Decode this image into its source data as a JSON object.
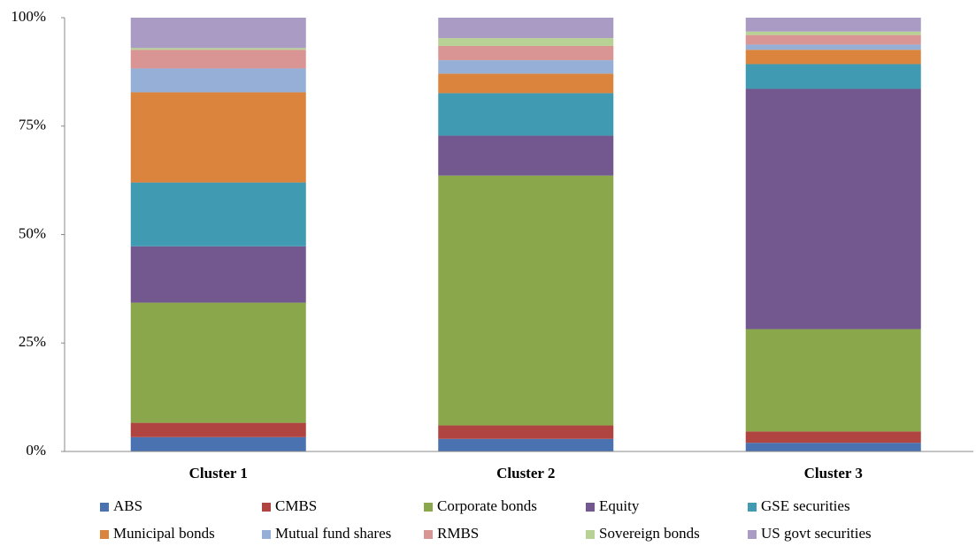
{
  "chart_data": {
    "type": "stacked_bar",
    "categories": [
      "Cluster 1",
      "Cluster 2",
      "Cluster 3"
    ],
    "series": [
      {
        "name": "ABS",
        "color": "#4a72b0",
        "values": [
          3.3,
          2.9,
          2.0
        ]
      },
      {
        "name": "CMBS",
        "color": "#b04440",
        "values": [
          3.3,
          3.1,
          2.6
        ]
      },
      {
        "name": "Corporate bonds",
        "color": "#8aa74c",
        "values": [
          27.7,
          57.6,
          23.6
        ]
      },
      {
        "name": "Equity",
        "color": "#72588f",
        "values": [
          13.0,
          9.2,
          55.4
        ]
      },
      {
        "name": "GSE securities",
        "color": "#3f9ab2",
        "values": [
          14.7,
          9.8,
          5.7
        ]
      },
      {
        "name": "Municipal bonds",
        "color": "#db843d",
        "values": [
          20.8,
          4.5,
          3.3
        ]
      },
      {
        "name": "Mutual fund shares",
        "color": "#95afd6",
        "values": [
          5.5,
          3.1,
          1.2
        ]
      },
      {
        "name": "RMBS",
        "color": "#d89593",
        "values": [
          4.3,
          3.3,
          2.2
        ]
      },
      {
        "name": "Sovereign bonds",
        "color": "#b8d194",
        "values": [
          0.4,
          1.8,
          0.8
        ]
      },
      {
        "name": "US govt securities",
        "color": "#a99bc3",
        "values": [
          7.0,
          4.7,
          3.2
        ]
      }
    ],
    "ylim": [
      0,
      100
    ],
    "yticks": [
      {
        "value": 0,
        "label": "0%"
      },
      {
        "value": 25,
        "label": "25%"
      },
      {
        "value": 50,
        "label": "50%"
      },
      {
        "value": 75,
        "label": "75%"
      },
      {
        "value": 100,
        "label": "100%"
      }
    ],
    "grid": false
  }
}
